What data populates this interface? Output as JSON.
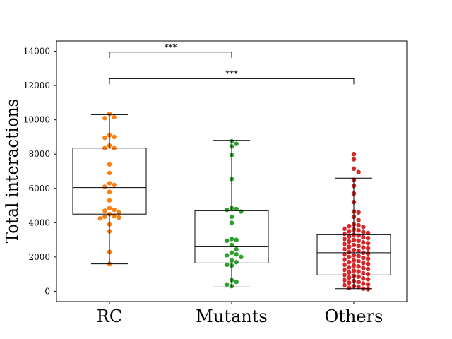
{
  "chart_data": {
    "type": "box-swarm",
    "ylabel": "Total interactions",
    "xlabel": "",
    "ylim": [
      -600,
      14600
    ],
    "yticks": [
      0,
      2000,
      4000,
      6000,
      8000,
      10000,
      12000,
      14000
    ],
    "categories": [
      "RC",
      "Mutants",
      "Others"
    ],
    "colors": [
      "#ff7f0e",
      "#2ca02c",
      "#d62728"
    ],
    "boxes": [
      {
        "name": "RC",
        "whisker_low": 1600,
        "q1": 4500,
        "median": 6050,
        "q3": 8350,
        "whisker_high": 10300
      },
      {
        "name": "Mutants",
        "whisker_low": 250,
        "q1": 1650,
        "median": 2600,
        "q3": 4700,
        "whisker_high": 8800
      },
      {
        "name": "Others",
        "whisker_low": 150,
        "q1": 950,
        "median": 2250,
        "q3": 3300,
        "whisker_high": 6600
      }
    ],
    "points": [
      [
        10350,
        10150,
        10100,
        9100,
        9000,
        8950,
        8500,
        8350,
        8350,
        7400,
        6900,
        6300,
        6200,
        6100,
        5800,
        5300,
        4850,
        4750,
        4700,
        4600,
        4500,
        4400,
        4350,
        4300,
        4250,
        3900,
        3500,
        2300,
        1600
      ],
      [
        8750,
        8600,
        8450,
        7950,
        6550,
        4850,
        4800,
        4750,
        4650,
        4350,
        4000,
        3050,
        3000,
        2950,
        2700,
        2450,
        2250,
        2150,
        2100,
        2000,
        1800,
        1700,
        1550,
        1500,
        650,
        550,
        400,
        300
      ],
      [
        8000,
        7700,
        7150,
        6950,
        6500,
        6150,
        5700,
        5200,
        4650,
        4600,
        4350,
        4150,
        3900,
        3850,
        3800,
        3750,
        3650,
        3600,
        3550,
        3500,
        3450,
        3400,
        3350,
        3300,
        3250,
        3200,
        3150,
        3100,
        3050,
        3000,
        2950,
        2900,
        2850,
        2800,
        2750,
        2700,
        2650,
        2600,
        2550,
        2500,
        2450,
        2400,
        2350,
        2300,
        2250,
        2200,
        2150,
        2100,
        2050,
        2000,
        1950,
        1900,
        1850,
        1800,
        1750,
        1700,
        1650,
        1600,
        1550,
        1500,
        1450,
        1400,
        1350,
        1300,
        1250,
        1200,
        1150,
        1100,
        1050,
        1000,
        950,
        900,
        850,
        800,
        750,
        700,
        650,
        600,
        550,
        500,
        450,
        400,
        350,
        300,
        250,
        200,
        150,
        120
      ]
    ],
    "significance": [
      {
        "from": "RC",
        "to": "Mutants",
        "y": 13950,
        "label": "***"
      },
      {
        "from": "RC",
        "to": "Others",
        "y": 12400,
        "label": "***"
      }
    ],
    "grid": false,
    "legend": "none"
  }
}
